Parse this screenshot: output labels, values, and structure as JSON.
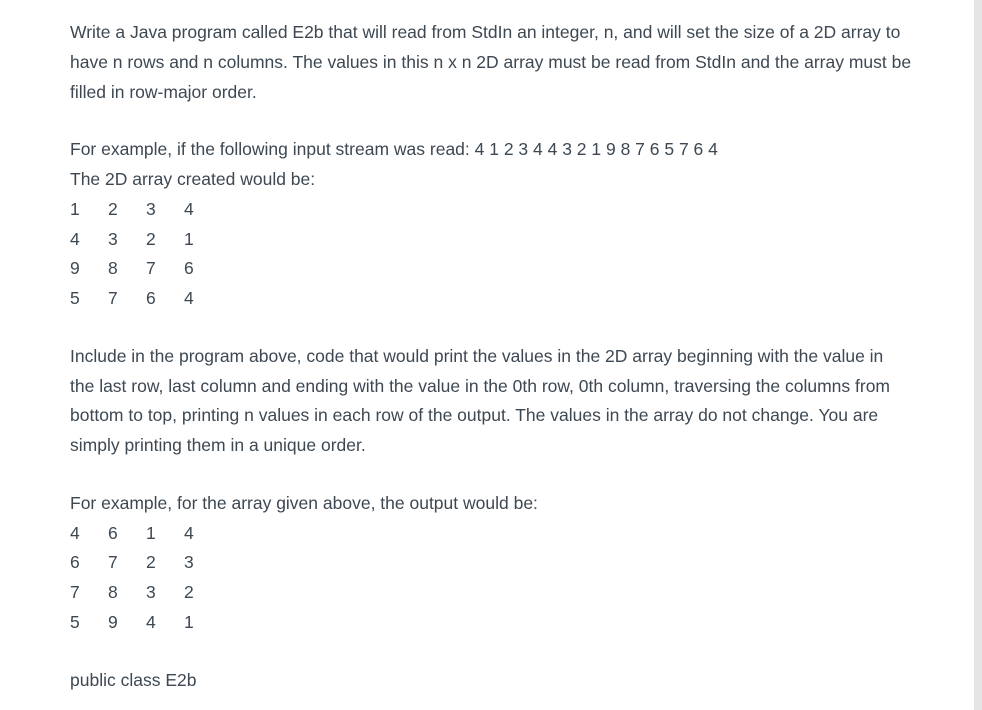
{
  "para1": "Write a Java program called E2b that will read from StdIn an integer, n, and will set the size of a 2D array to have n rows and n columns. The values in this n x n 2D array must be read from StdIn and the array must be filled in row-major order.",
  "example1_intro": "For example, if the following input stream was read: 4   1 2 3 4   4 3 2 1   9 8 7 6   5 7 6 4",
  "example1_line2": "The 2D array created would be:",
  "grid1": [
    [
      "1",
      "2",
      "3",
      "4"
    ],
    [
      "4",
      "3",
      "2",
      "1"
    ],
    [
      "9",
      "8",
      "7",
      "6"
    ],
    [
      "5",
      "7",
      "6",
      "4"
    ]
  ],
  "para2": "Include in the program above, code that would print the values in the 2D array beginning with the value in the last row, last column and ending with the value in the 0th row, 0th column, traversing the columns from bottom to top, printing n values in each row of the output. The values in the array do not change. You are simply printing them in a unique order.",
  "example2_intro": "For example, for the array given above, the output would be:",
  "grid2": [
    [
      "4",
      "6",
      "1",
      "4"
    ],
    [
      "6",
      "7",
      "2",
      "3"
    ],
    [
      "7",
      "8",
      "3",
      "2"
    ],
    [
      "5",
      "9",
      "4",
      "1"
    ]
  ],
  "code_line": "public class E2b"
}
